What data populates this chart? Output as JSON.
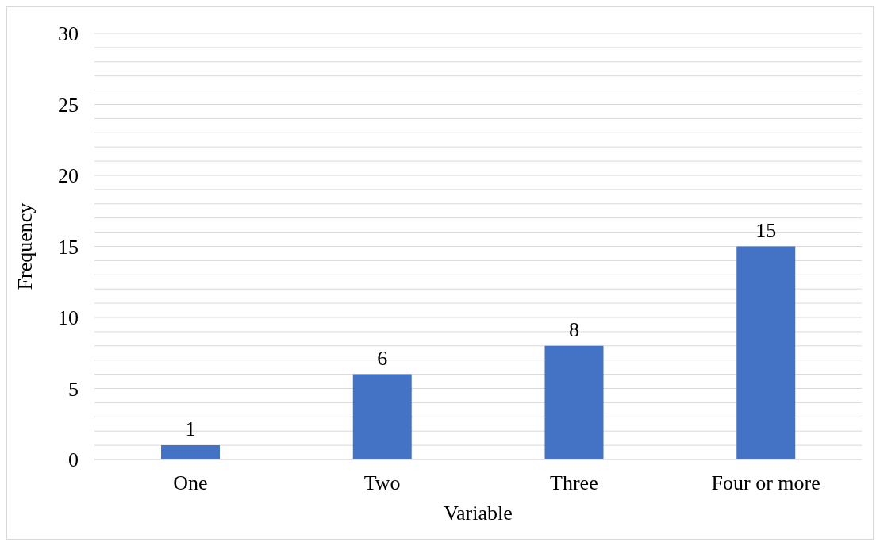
{
  "chart_data": {
    "type": "bar",
    "xlabel": "Variable",
    "ylabel": "Frequency",
    "categories": [
      "One",
      "Two",
      "Three",
      "Four or more"
    ],
    "values": [
      1,
      6,
      8,
      15
    ],
    "color": "#4472c4",
    "ylim": [
      0,
      30
    ],
    "yticks": [
      0,
      {
        "value": 1,
        "label": null
      },
      {
        "value": 2,
        "label": null
      },
      {
        "value": 3,
        "label": null
      },
      {
        "value": 4,
        "label": null
      },
      5,
      {
        "value": 6,
        "label": null
      },
      {
        "value": 7,
        "label": null
      },
      {
        "value": 8,
        "label": null
      },
      {
        "value": 9,
        "label": null
      },
      10,
      {
        "value": 11,
        "label": null
      },
      {
        "value": 12,
        "label": null
      },
      {
        "value": 13,
        "label": null
      },
      {
        "value": 14,
        "label": null
      },
      15,
      {
        "value": 16,
        "label": null
      },
      {
        "value": 17,
        "label": null
      },
      {
        "value": 18,
        "label": null
      },
      {
        "value": 19,
        "label": null
      },
      20,
      {
        "value": 21,
        "label": null
      },
      {
        "value": 22,
        "label": null
      },
      {
        "value": 23,
        "label": null
      },
      {
        "value": 24,
        "label": null
      },
      25,
      {
        "value": 26,
        "label": null
      },
      {
        "value": 27,
        "label": null
      },
      {
        "value": 28,
        "label": null
      },
      {
        "value": 29,
        "label": null
      },
      30
    ],
    "grid": "y",
    "data_labels": true
  }
}
